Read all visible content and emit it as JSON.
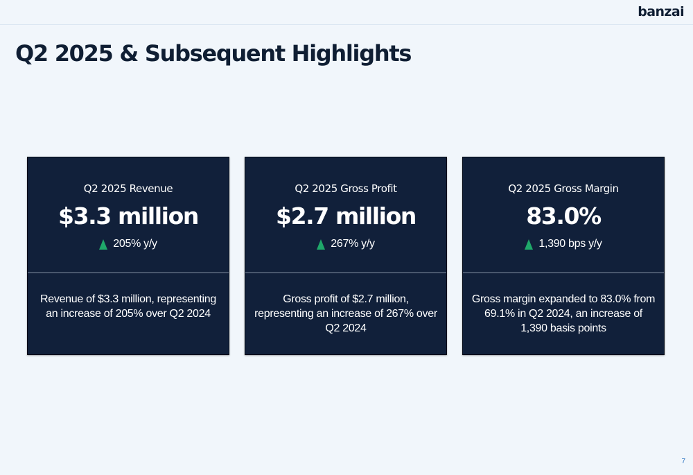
{
  "header": {
    "logo": "banzai"
  },
  "title": "Q2 2025 & Subsequent Highlights",
  "cards": [
    {
      "label": "Q2 2025 Revenue",
      "value": "$3.3 million",
      "change": "205% y/y",
      "change_icon": "up-arrow-icon",
      "description": "Revenue of $3.3 million, representing an increase of 205% over Q2 2024"
    },
    {
      "label": "Q2 2025 Gross Profit",
      "value": "$2.7 million",
      "change": "267% y/y",
      "change_icon": "up-arrow-icon",
      "description": "Gross profit of $2.7 million, representing an increase of 267% over Q2 2024"
    },
    {
      "label": "Q2 2025 Gross Margin",
      "value": "83.0%",
      "change": "1,390 bps y/y",
      "change_icon": "up-arrow-icon",
      "description": "Gross margin expanded to 83.0% from 69.1% in Q2 2024, an increase of 1,390 basis points"
    }
  ],
  "colors": {
    "background": "#f1f6fb",
    "card": "#11203a",
    "title": "#0f1e33",
    "up_arrow": "#1fa86a",
    "page_number": "#2c74c2"
  },
  "page_number": "7"
}
